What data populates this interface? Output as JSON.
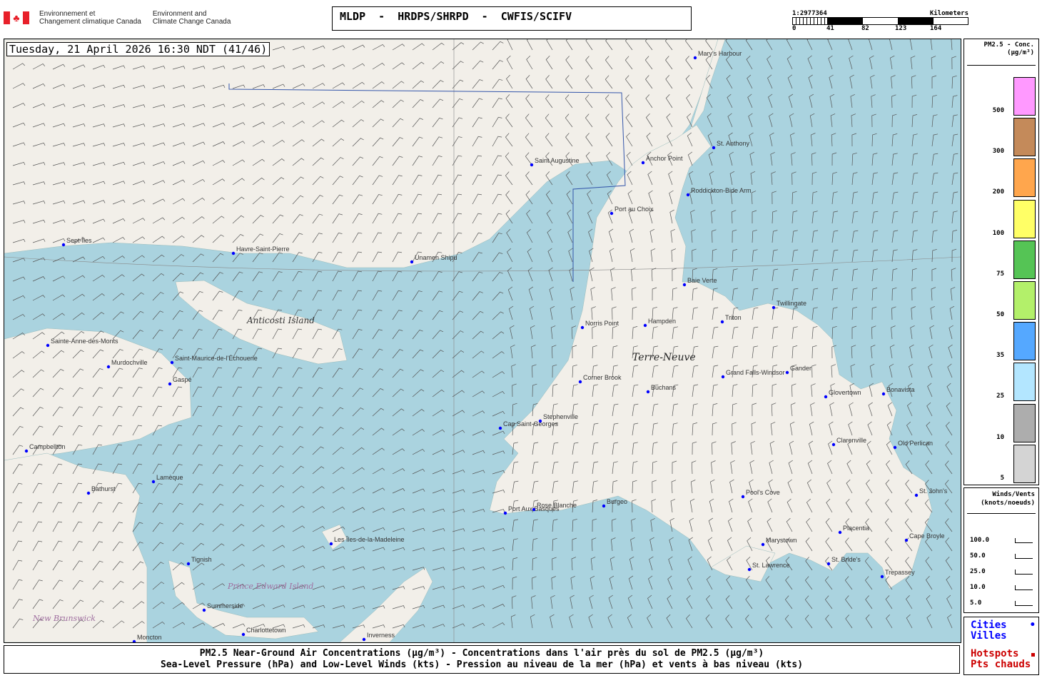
{
  "header": {
    "agency_fr": [
      "Environnement et",
      "Changement climatique Canada"
    ],
    "agency_en": [
      "Environment and",
      "Climate Change Canada"
    ],
    "title": "MLDP  -  HRDPS/SHRPD  -  CWFIS/SCIFV"
  },
  "scale": {
    "ratio": "1:2977364",
    "unit": "Kilometers",
    "ticks": [
      "0",
      "41",
      "82",
      "123",
      "164"
    ]
  },
  "timestamp": "Tuesday, 21 April 2026 16:30 NDT (41/46)",
  "legend": {
    "title": "PM2.5 - Conc.",
    "unit": "(µg/m³)",
    "bins": [
      {
        "label": "500",
        "color": "#ff99ff"
      },
      {
        "label": "300",
        "color": "#c48a5a"
      },
      {
        "label": "200",
        "color": "#ffa64d"
      },
      {
        "label": "100",
        "color": "#ffff66"
      },
      {
        "label": "75",
        "color": "#55c455"
      },
      {
        "label": "50",
        "color": "#b3f06a"
      },
      {
        "label": "35",
        "color": "#55a8ff"
      },
      {
        "label": "25",
        "color": "#b3e6ff"
      },
      {
        "label": "10",
        "color": "#adadad"
      },
      {
        "label": "5",
        "color": "#d4d4d4"
      }
    ]
  },
  "wind_legend": {
    "title": "Winds/Vents",
    "unit": "(knots/noeuds)",
    "speeds": [
      "100.0",
      "50.0",
      "25.0",
      "10.0",
      "5.0"
    ]
  },
  "cities_legend": {
    "cities": "Cities",
    "villes": "Villes",
    "hotspots": "Hotspots",
    "pts_chauds": "Pts chauds",
    "city_color": "#0000ff",
    "hotspot_color": "#cc0000"
  },
  "map": {
    "regions": [
      "Anticosti Island",
      "Terre-Neuve",
      "Prince Edward Island",
      "New Brunswick"
    ],
    "cities": [
      "Mary's Harbour",
      "Saint Augustine",
      "Anchor Point",
      "St. Anthony",
      "Roddickton-Bide Arm",
      "Port au Choix",
      "Sept-Îles",
      "Havre-Saint-Pierre",
      "Unamen Shipu",
      "Baie Verte",
      "Twillingate",
      "Norris Point",
      "Hampden",
      "Triton",
      "Sainte-Anne-des-Monts",
      "Saint-Maurice-de-l'Échouerie",
      "Murdochville",
      "Gaspé",
      "Corner Brook",
      "Grand Falls-Windsor",
      "Gander",
      "Buchans",
      "Glovertown",
      "Bonavista",
      "Cap Saint-Georges",
      "Stephenville",
      "Clarenville",
      "Old Perlican",
      "Campbellton",
      "Lamèque",
      "Bathurst",
      "Pool's Cove",
      "St. John's",
      "Port Aux Basques",
      "Rose Blanche",
      "Burgeo",
      "Les Îles-de-la-Madeleine",
      "Placentia",
      "Marystown",
      "Cape Broyle",
      "Tignish",
      "St. Lawrence",
      "St. Bride's",
      "Trepassey",
      "Summerside",
      "Charlottetown",
      "Inverness",
      "Moncton"
    ]
  },
  "caption": {
    "line1": "PM2.5 Near-Ground Air Concentrations (µg/m³) - Concentrations dans l'air près du sol de PM2.5 (µg/m³)",
    "line2": "Sea-Level Pressure (hPa) and Low-Level Winds (kts) - Pression au niveau de la mer (hPa) et vents à bas niveau (kts)"
  }
}
